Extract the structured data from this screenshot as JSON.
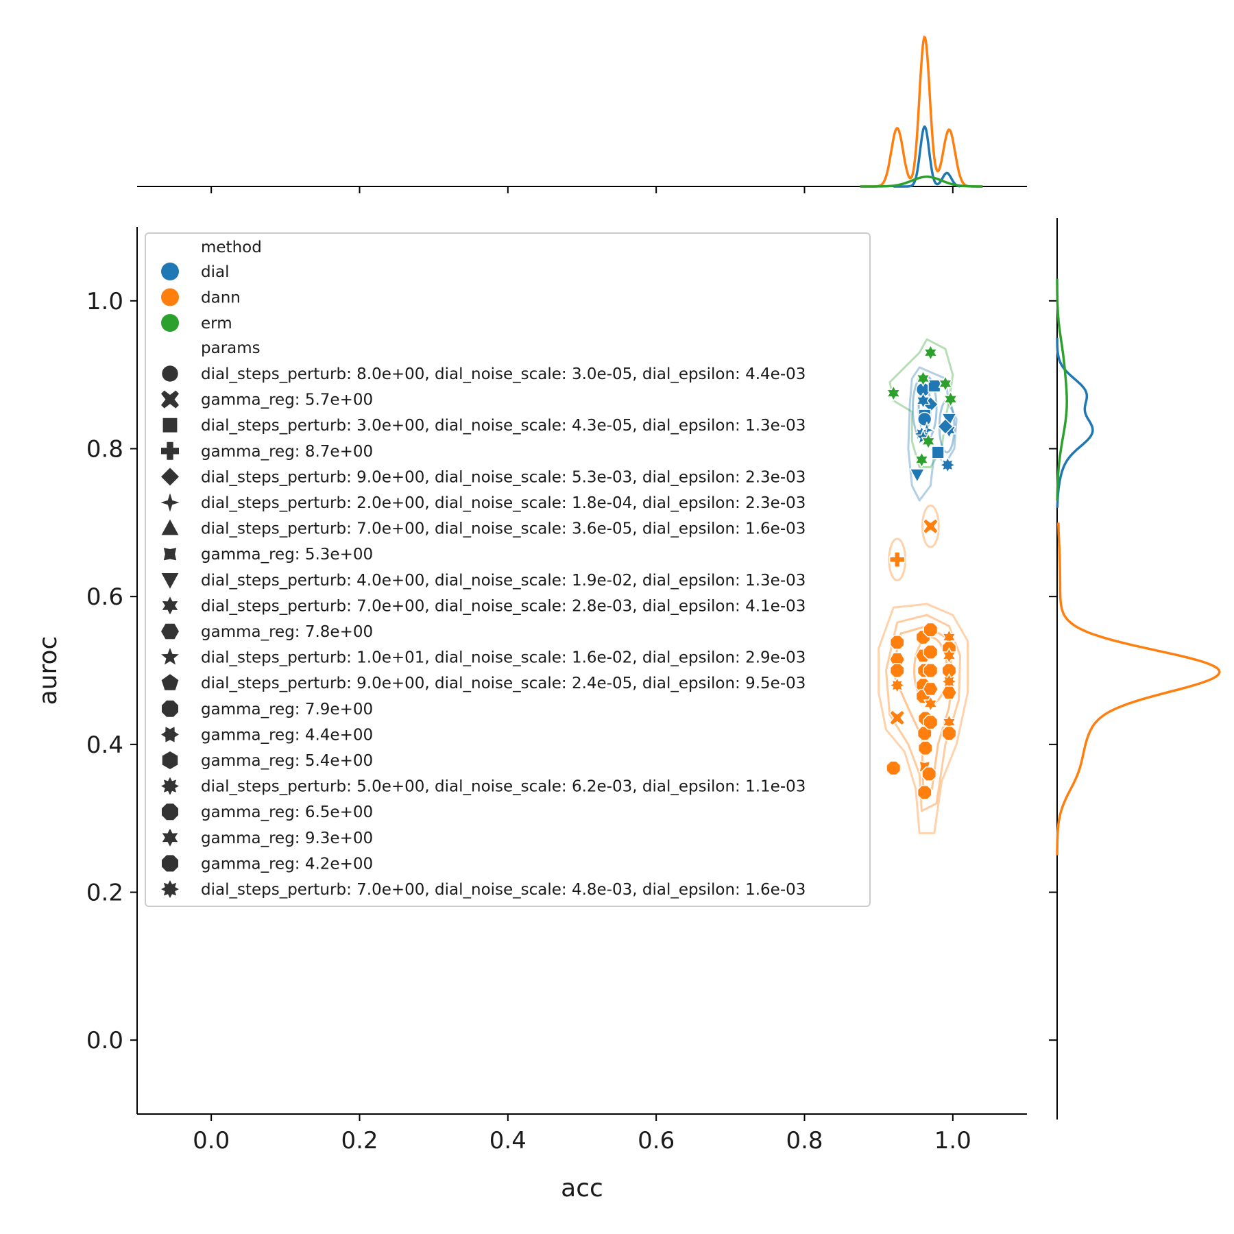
{
  "chart_data": {
    "type": "scatter",
    "title": "",
    "xlabel": "acc",
    "ylabel": "auroc",
    "xlim": [
      -0.1,
      1.1
    ],
    "ylim": [
      -0.1,
      1.1
    ],
    "xticks": [
      "0.0",
      "0.2",
      "0.4",
      "0.6",
      "0.8",
      "1.0"
    ],
    "yticks": [
      "0.0",
      "0.2",
      "0.4",
      "0.6",
      "0.8",
      "1.0"
    ],
    "grid": false,
    "legend_placement": "upper-left",
    "marginals": "kde on top (acc) and right (auroc)",
    "legend": {
      "hue_title": "method",
      "style_title": "params",
      "methods": [
        {
          "name": "dial",
          "color": "#1f77b4"
        },
        {
          "name": "dann",
          "color": "#ff7f0e"
        },
        {
          "name": "erm",
          "color": "#2ca02c"
        }
      ],
      "params": [
        {
          "label": "dial_steps_perturb: 8.0e+00, dial_noise_scale: 3.0e-05, dial_epsilon: 4.4e-03",
          "marker": "circle"
        },
        {
          "label": "gamma_reg: 5.7e+00",
          "marker": "x"
        },
        {
          "label": "dial_steps_perturb: 3.0e+00, dial_noise_scale: 4.3e-05, dial_epsilon: 1.3e-03",
          "marker": "square"
        },
        {
          "label": "gamma_reg: 8.7e+00",
          "marker": "plus"
        },
        {
          "label": "dial_steps_perturb: 9.0e+00, dial_noise_scale: 5.3e-03, dial_epsilon: 2.3e-03",
          "marker": "diamond"
        },
        {
          "label": "dial_steps_perturb: 2.0e+00, dial_noise_scale: 1.8e-04, dial_epsilon: 2.3e-03",
          "marker": "star4"
        },
        {
          "label": "dial_steps_perturb: 7.0e+00, dial_noise_scale: 3.6e-05, dial_epsilon: 1.6e-03",
          "marker": "triangle-up"
        },
        {
          "label": "gamma_reg: 5.3e+00",
          "marker": "star4x"
        },
        {
          "label": "dial_steps_perturb: 4.0e+00, dial_noise_scale: 1.9e-02, dial_epsilon: 1.3e-03",
          "marker": "triangle-down"
        },
        {
          "label": "dial_steps_perturb: 7.0e+00, dial_noise_scale: 2.8e-03, dial_epsilon: 4.1e-03",
          "marker": "star6"
        },
        {
          "label": "gamma_reg: 7.8e+00",
          "marker": "hexagon"
        },
        {
          "label": "dial_steps_perturb: 1.0e+01, dial_noise_scale: 1.6e-02, dial_epsilon: 2.9e-03",
          "marker": "star5"
        },
        {
          "label": "dial_steps_perturb: 9.0e+00, dial_noise_scale: 2.4e-05, dial_epsilon: 9.5e-03",
          "marker": "pentagon"
        },
        {
          "label": "gamma_reg: 7.9e+00",
          "marker": "octagon"
        },
        {
          "label": "gamma_reg: 4.4e+00",
          "marker": "star6b"
        },
        {
          "label": "gamma_reg: 5.4e+00",
          "marker": "hexagon-v"
        },
        {
          "label": "dial_steps_perturb: 5.0e+00, dial_noise_scale: 6.2e-03, dial_epsilon: 1.1e-03",
          "marker": "star8"
        },
        {
          "label": "gamma_reg: 6.5e+00",
          "marker": "octagon"
        },
        {
          "label": "gamma_reg: 9.3e+00",
          "marker": "star6"
        },
        {
          "label": "gamma_reg: 4.2e+00",
          "marker": "octagon"
        },
        {
          "label": "dial_steps_perturb: 7.0e+00, dial_noise_scale: 4.8e-03, dial_epsilon: 1.6e-03",
          "marker": "star8"
        }
      ]
    },
    "series": [
      {
        "name": "dial",
        "color": "#1f77b4",
        "points": [
          {
            "x": 0.96,
            "y": 0.88,
            "marker": "circle"
          },
          {
            "x": 0.975,
            "y": 0.885,
            "marker": "square"
          },
          {
            "x": 0.97,
            "y": 0.86,
            "marker": "diamond"
          },
          {
            "x": 0.96,
            "y": 0.865,
            "marker": "star6"
          },
          {
            "x": 0.962,
            "y": 0.845,
            "marker": "square"
          },
          {
            "x": 0.962,
            "y": 0.84,
            "marker": "circle"
          },
          {
            "x": 0.965,
            "y": 0.825,
            "marker": "star4"
          },
          {
            "x": 0.958,
            "y": 0.82,
            "marker": "star8"
          },
          {
            "x": 0.96,
            "y": 0.815,
            "marker": "star5"
          },
          {
            "x": 0.995,
            "y": 0.84,
            "marker": "triangle-down"
          },
          {
            "x": 0.995,
            "y": 0.825,
            "marker": "star6"
          },
          {
            "x": 0.99,
            "y": 0.83,
            "marker": "diamond"
          },
          {
            "x": 0.98,
            "y": 0.795,
            "marker": "square"
          },
          {
            "x": 0.952,
            "y": 0.765,
            "marker": "triangle-down"
          },
          {
            "x": 0.993,
            "y": 0.778,
            "marker": "star8"
          }
        ]
      },
      {
        "name": "dann",
        "color": "#ff7f0e",
        "points": [
          {
            "x": 0.97,
            "y": 0.695,
            "marker": "x"
          },
          {
            "x": 0.925,
            "y": 0.65,
            "marker": "plus"
          },
          {
            "x": 0.925,
            "y": 0.538,
            "marker": "octagon"
          },
          {
            "x": 0.925,
            "y": 0.515,
            "marker": "hexagon"
          },
          {
            "x": 0.925,
            "y": 0.5,
            "marker": "octagon"
          },
          {
            "x": 0.925,
            "y": 0.48,
            "marker": "star8"
          },
          {
            "x": 0.925,
            "y": 0.436,
            "marker": "x"
          },
          {
            "x": 0.92,
            "y": 0.368,
            "marker": "octagon"
          },
          {
            "x": 0.96,
            "y": 0.545,
            "marker": "octagon"
          },
          {
            "x": 0.96,
            "y": 0.52,
            "marker": "hexagon"
          },
          {
            "x": 0.962,
            "y": 0.5,
            "marker": "octagon"
          },
          {
            "x": 0.96,
            "y": 0.48,
            "marker": "octagon"
          },
          {
            "x": 0.96,
            "y": 0.465,
            "marker": "octagon"
          },
          {
            "x": 0.963,
            "y": 0.435,
            "marker": "octagon"
          },
          {
            "x": 0.962,
            "y": 0.415,
            "marker": "octagon"
          },
          {
            "x": 0.963,
            "y": 0.395,
            "marker": "octagon"
          },
          {
            "x": 0.962,
            "y": 0.37,
            "marker": "star4x"
          },
          {
            "x": 0.962,
            "y": 0.335,
            "marker": "octagon"
          },
          {
            "x": 0.968,
            "y": 0.36,
            "marker": "octagon"
          },
          {
            "x": 0.97,
            "y": 0.555,
            "marker": "octagon"
          },
          {
            "x": 0.97,
            "y": 0.525,
            "marker": "octagon"
          },
          {
            "x": 0.97,
            "y": 0.5,
            "marker": "octagon"
          },
          {
            "x": 0.97,
            "y": 0.475,
            "marker": "hexagon"
          },
          {
            "x": 0.97,
            "y": 0.455,
            "marker": "star6"
          },
          {
            "x": 0.97,
            "y": 0.43,
            "marker": "octagon"
          },
          {
            "x": 0.995,
            "y": 0.545,
            "marker": "star6"
          },
          {
            "x": 0.995,
            "y": 0.53,
            "marker": "octagon"
          },
          {
            "x": 0.995,
            "y": 0.52,
            "marker": "star6"
          },
          {
            "x": 0.995,
            "y": 0.5,
            "marker": "octagon"
          },
          {
            "x": 0.995,
            "y": 0.485,
            "marker": "star8"
          },
          {
            "x": 0.995,
            "y": 0.47,
            "marker": "hexagon"
          },
          {
            "x": 0.995,
            "y": 0.43,
            "marker": "star6"
          },
          {
            "x": 0.995,
            "y": 0.415,
            "marker": "octagon"
          }
        ]
      },
      {
        "name": "erm",
        "color": "#2ca02c",
        "points": [
          {
            "x": 0.97,
            "y": 0.93,
            "marker": "star6"
          },
          {
            "x": 0.96,
            "y": 0.895,
            "marker": "star6"
          },
          {
            "x": 0.99,
            "y": 0.888,
            "marker": "star6"
          },
          {
            "x": 0.92,
            "y": 0.875,
            "marker": "star6"
          },
          {
            "x": 0.997,
            "y": 0.867,
            "marker": "star6"
          },
          {
            "x": 0.967,
            "y": 0.81,
            "marker": "star6"
          },
          {
            "x": 0.958,
            "y": 0.785,
            "marker": "star6"
          }
        ]
      }
    ]
  }
}
